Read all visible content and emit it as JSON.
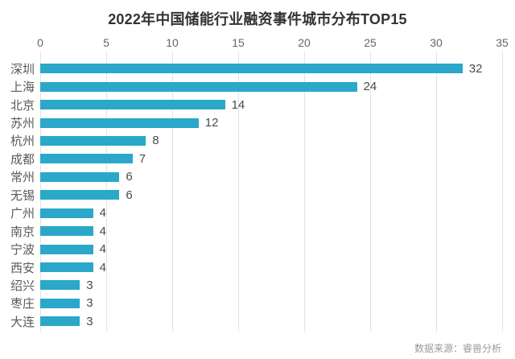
{
  "title": "2022年中国储能行业融资事件城市分布TOP15",
  "source": "数据来源：睿兽分析",
  "colors": {
    "bar": "#2AA7C9",
    "grid": "#e3e3e3",
    "title": "#333333",
    "tick": "#666666",
    "category": "#595959",
    "value": "#4a4a4a",
    "source": "#999999"
  },
  "chart_data": {
    "type": "bar",
    "orientation": "horizontal",
    "title": "2022年中国储能行业融资事件城市分布TOP15",
    "categories": [
      "深圳",
      "上海",
      "北京",
      "苏州",
      "杭州",
      "成都",
      "常州",
      "无锡",
      "广州",
      "南京",
      "宁波",
      "西安",
      "绍兴",
      "枣庄",
      "大连"
    ],
    "values": [
      32,
      24,
      14,
      12,
      8,
      7,
      6,
      6,
      4,
      4,
      4,
      4,
      3,
      3,
      3
    ],
    "xlabel": "",
    "ylabel": "",
    "xlim": [
      0,
      35
    ],
    "xticks": [
      0,
      5,
      10,
      15,
      20,
      25,
      30,
      35
    ],
    "grid": "vertical",
    "tick_position": "top",
    "value_labels": true,
    "legend": "none"
  }
}
